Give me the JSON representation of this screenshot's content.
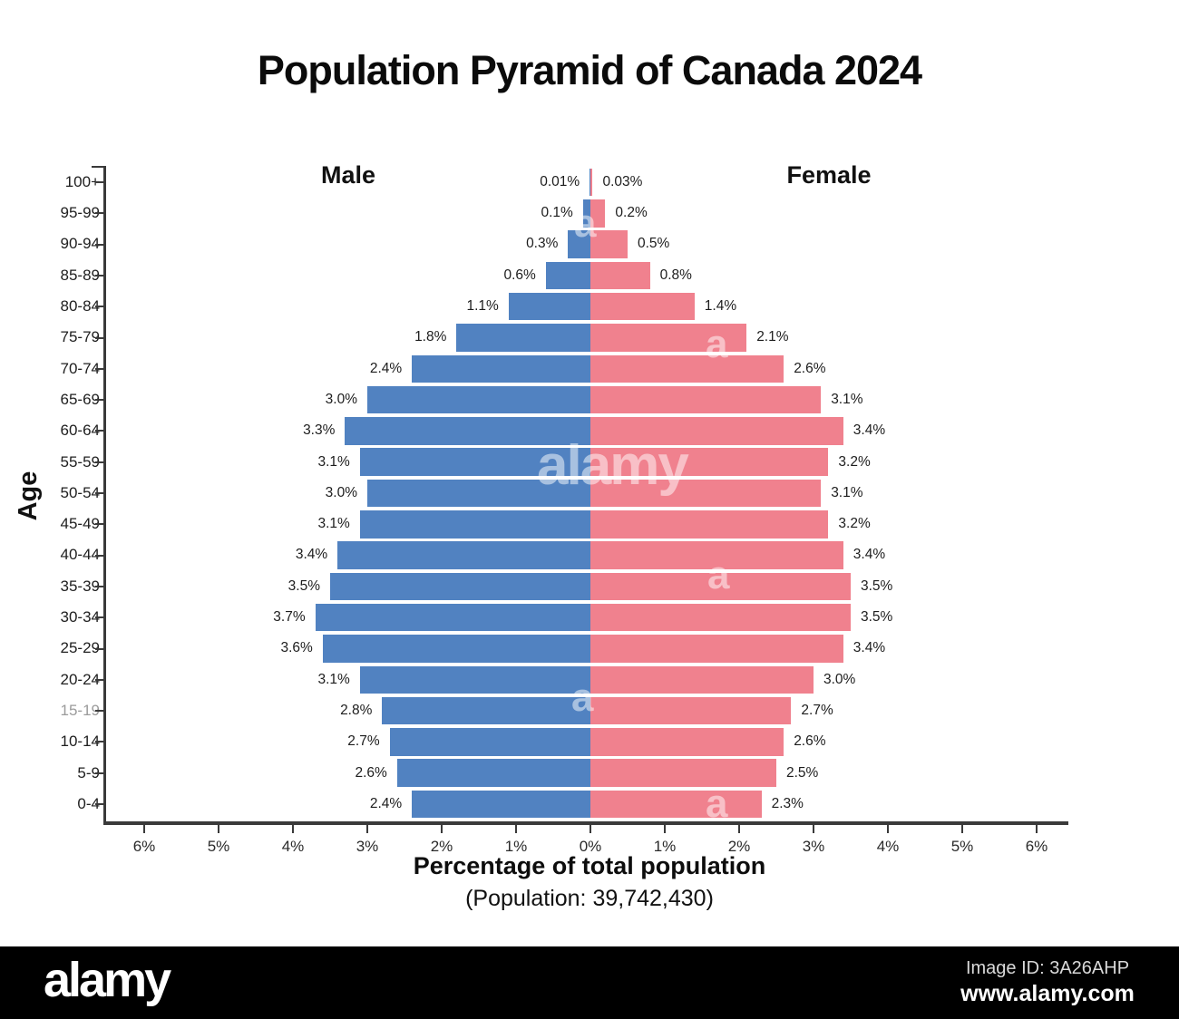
{
  "header": {
    "title": "Population Pyramid of Canada 2024"
  },
  "chart_data": {
    "type": "bar",
    "variant": "population-pyramid",
    "title": "Population Pyramid of Canada 2024",
    "ylabel": "Age",
    "xlabel": "Percentage of total population",
    "subtitle": "(Population: 39,742,430)",
    "legend": {
      "male": "Male",
      "female": "Female"
    },
    "colors": {
      "male": "#5182c1",
      "female": "#f0818e",
      "axis": "#3a3a3a"
    },
    "categories": [
      "100+",
      "95-99",
      "90-94",
      "85-89",
      "80-84",
      "75-79",
      "70-74",
      "65-69",
      "60-64",
      "55-59",
      "50-54",
      "45-49",
      "40-44",
      "35-39",
      "30-34",
      "25-29",
      "20-24",
      "15-19",
      "10-14",
      "5-9",
      "0-4"
    ],
    "muted_category": "15-19",
    "series": [
      {
        "name": "Male",
        "side": "left",
        "values": [
          0.01,
          0.1,
          0.3,
          0.6,
          1.1,
          1.8,
          2.4,
          3.0,
          3.3,
          3.1,
          3.0,
          3.1,
          3.4,
          3.5,
          3.7,
          3.6,
          3.1,
          2.8,
          2.7,
          2.6,
          2.4
        ],
        "labels": [
          "0.01%",
          "0.1%",
          "0.3%",
          "0.6%",
          "1.1%",
          "1.8%",
          "2.4%",
          "3.0%",
          "3.3%",
          "3.1%",
          "3.0%",
          "3.1%",
          "3.4%",
          "3.5%",
          "3.7%",
          "3.6%",
          "3.1%",
          "2.8%",
          "2.7%",
          "2.6%",
          "2.4%"
        ]
      },
      {
        "name": "Female",
        "side": "right",
        "values": [
          0.03,
          0.2,
          0.5,
          0.8,
          1.4,
          2.1,
          2.6,
          3.1,
          3.4,
          3.2,
          3.1,
          3.2,
          3.4,
          3.5,
          3.5,
          3.4,
          3.0,
          2.7,
          2.6,
          2.5,
          2.3
        ],
        "labels": [
          "0.03%",
          "0.2%",
          "0.5%",
          "0.8%",
          "1.4%",
          "2.1%",
          "2.6%",
          "3.1%",
          "3.4%",
          "3.2%",
          "3.1%",
          "3.2%",
          "3.4%",
          "3.5%",
          "3.5%",
          "3.4%",
          "3.0%",
          "2.7%",
          "2.6%",
          "2.5%",
          "2.3%"
        ]
      }
    ],
    "x_ticks": [
      "6%",
      "5%",
      "4%",
      "3%",
      "2%",
      "1%",
      "0%",
      "1%",
      "2%",
      "3%",
      "4%",
      "5%",
      "6%"
    ],
    "xlim": [
      -6.5,
      6.5
    ],
    "grid": false,
    "legend_position": "inside-top"
  },
  "watermark": {
    "big_text": "alamy",
    "tile_text": "a"
  },
  "footer": {
    "logo": "alamy",
    "image_id": "Image ID: 3A26AHP",
    "url": "www.alamy.com"
  }
}
